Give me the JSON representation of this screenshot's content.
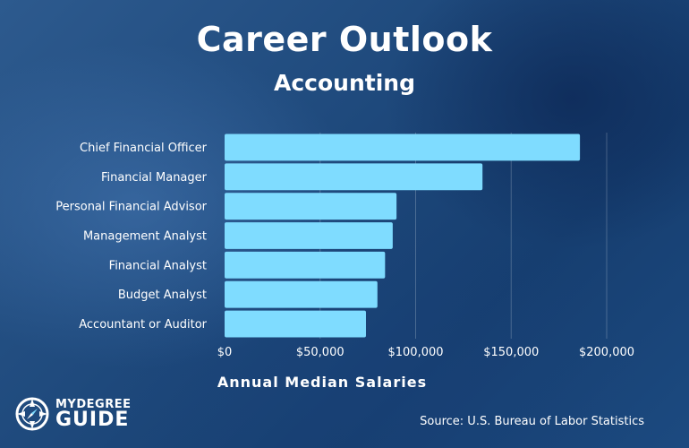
{
  "header": {
    "title": "Career Outlook",
    "subtitle": "Accounting"
  },
  "brand": {
    "line1": "MYDEGREE",
    "line2": "GUIDE"
  },
  "source": "Source: U.S. Bureau of Labor Statistics",
  "colors": {
    "bar": "#7fdcff",
    "background": "#1f4a7d"
  },
  "chart_data": {
    "type": "bar",
    "orientation": "horizontal",
    "title": "Career Outlook",
    "subtitle": "Accounting",
    "xlabel": "Annual Median Salaries",
    "ylabel": "",
    "categories": [
      "Chief Financial Officer",
      "Financial Manager",
      "Personal Financial Advisor",
      "Management Analyst",
      "Financial Analyst",
      "Budget Analyst",
      "Accountant or Auditor"
    ],
    "values": [
      186000,
      135000,
      90000,
      88000,
      84000,
      80000,
      74000
    ],
    "xlim": [
      0,
      200000
    ],
    "ticks": [
      0,
      50000,
      100000,
      150000,
      200000
    ],
    "tick_labels": [
      "$0",
      "$50,000",
      "$100,000",
      "$150,000",
      "$200,000"
    ],
    "grid": true,
    "legend": "none"
  }
}
